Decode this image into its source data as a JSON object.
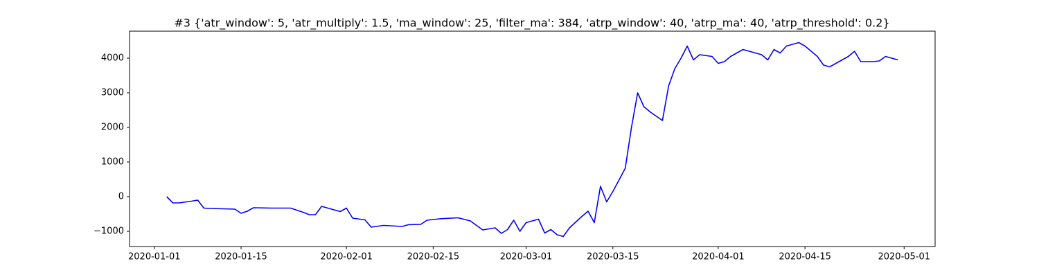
{
  "chart_data": {
    "type": "line",
    "title": "#3 {'atr_window': 5, 'atr_multiply': 1.5, 'ma_window': 25, 'filter_ma': 384, 'atrp_window': 40, 'atrp_ma': 40, 'atrp_threshold': 0.2}",
    "x": [
      "2020-01-03",
      "2020-01-04",
      "2020-01-05",
      "2020-01-07",
      "2020-01-08",
      "2020-01-09",
      "2020-01-10",
      "2020-01-14",
      "2020-01-15",
      "2020-01-16",
      "2020-01-17",
      "2020-01-20",
      "2020-01-23",
      "2020-01-25",
      "2020-01-26",
      "2020-01-27",
      "2020-01-28",
      "2020-01-30",
      "2020-01-31",
      "2020-02-01",
      "2020-02-02",
      "2020-02-04",
      "2020-02-05",
      "2020-02-07",
      "2020-02-10",
      "2020-02-11",
      "2020-02-13",
      "2020-02-14",
      "2020-02-16",
      "2020-02-19",
      "2020-02-21",
      "2020-02-23",
      "2020-02-25",
      "2020-02-26",
      "2020-02-27",
      "2020-02-28",
      "2020-02-29",
      "2020-03-01",
      "2020-03-03",
      "2020-03-04",
      "2020-03-05",
      "2020-03-06",
      "2020-03-07",
      "2020-03-08",
      "2020-03-10",
      "2020-03-11",
      "2020-03-12",
      "2020-03-13",
      "2020-03-14",
      "2020-03-15",
      "2020-03-17",
      "2020-03-18",
      "2020-03-19",
      "2020-03-20",
      "2020-03-21",
      "2020-03-23",
      "2020-03-24",
      "2020-03-25",
      "2020-03-26",
      "2020-03-27",
      "2020-03-28",
      "2020-03-29",
      "2020-03-31",
      "2020-04-01",
      "2020-04-02",
      "2020-04-03",
      "2020-04-05",
      "2020-04-07",
      "2020-04-08",
      "2020-04-09",
      "2020-04-10",
      "2020-04-11",
      "2020-04-12",
      "2020-04-14",
      "2020-04-15",
      "2020-04-17",
      "2020-04-18",
      "2020-04-19",
      "2020-04-21",
      "2020-04-22",
      "2020-04-23",
      "2020-04-24",
      "2020-04-26",
      "2020-04-27",
      "2020-04-28",
      "2020-04-29",
      "2020-04-30"
    ],
    "series": [
      {
        "color": "#0000ff",
        "values": [
          0,
          -180,
          -180,
          -130,
          -100,
          -330,
          -340,
          -360,
          -480,
          -420,
          -320,
          -330,
          -330,
          -450,
          -520,
          -520,
          -280,
          -380,
          -430,
          -330,
          -620,
          -670,
          -880,
          -830,
          -860,
          -810,
          -800,
          -680,
          -640,
          -610,
          -700,
          -960,
          -900,
          -1060,
          -950,
          -680,
          -1000,
          -750,
          -650,
          -1050,
          -950,
          -1100,
          -1150,
          -900,
          -570,
          -420,
          -750,
          300,
          -150,
          150,
          820,
          2000,
          3000,
          2600,
          2450,
          2200,
          3200,
          3700,
          4000,
          4350,
          3950,
          4100,
          4050,
          3850,
          3900,
          4050,
          4250,
          4150,
          4100,
          3950,
          4250,
          4150,
          4350,
          4450,
          4350,
          4050,
          3800,
          3750,
          3950,
          4050,
          4200,
          3900,
          3900,
          3920,
          4050,
          4000,
          3950
        ]
      }
    ],
    "xlim": [
      "2019-12-28",
      "2020-05-06"
    ],
    "xticks": [
      "2020-01-01",
      "2020-01-15",
      "2020-02-01",
      "2020-02-15",
      "2020-03-01",
      "2020-03-15",
      "2020-04-01",
      "2020-04-15",
      "2020-05-01"
    ],
    "ylim": [
      -1440,
      4780
    ],
    "yticks": [
      {
        "value": -1000,
        "label": "−1000"
      },
      0,
      1000,
      2000,
      3000,
      4000
    ],
    "grid": false
  }
}
